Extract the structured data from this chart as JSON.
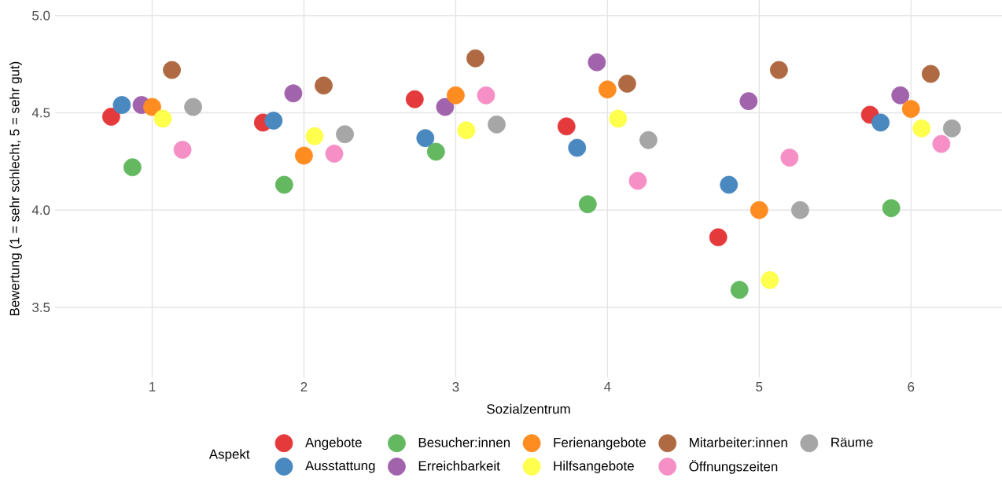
{
  "chart_data": {
    "type": "scatter",
    "xlabel": "Sozialzentrum",
    "ylabel": "Bewertung (1 = sehr schlecht, 5 = sehr gut)",
    "legend_title": "Aspekt",
    "legend": "bottom",
    "grid": true,
    "marker": "circle",
    "xlim": [
      0.36,
      6.6
    ],
    "ylim": [
      3.14,
      5.08
    ],
    "xticks": [
      1,
      2,
      3,
      4,
      5,
      6
    ],
    "yticks": [
      {
        "value": 3.5,
        "label": "3.5"
      },
      {
        "value": 4.0,
        "label": "4.0"
      },
      {
        "value": 4.5,
        "label": "4.5"
      },
      {
        "value": 5.0,
        "label": "5.0"
      }
    ],
    "series": [
      {
        "name": "Angebote",
        "color": "#e53a3c",
        "x": [
          0.73,
          1.73,
          2.73,
          3.73,
          4.73,
          5.73
        ],
        "values": [
          4.48,
          4.45,
          4.57,
          4.43,
          3.86,
          4.49
        ]
      },
      {
        "name": "Ausstattung",
        "color": "#4a88c0",
        "x": [
          0.8,
          1.8,
          2.8,
          3.8,
          4.8,
          5.8
        ],
        "values": [
          4.54,
          4.46,
          4.37,
          4.32,
          4.13,
          4.45
        ]
      },
      {
        "name": "Besucher:innen",
        "color": "#63b860",
        "x": [
          0.87,
          1.87,
          2.87,
          3.87,
          4.87,
          5.87
        ],
        "values": [
          4.22,
          4.13,
          4.3,
          4.03,
          3.59,
          4.01
        ]
      },
      {
        "name": "Erreichbarkeit",
        "color": "#a163ab",
        "x": [
          0.93,
          1.93,
          2.93,
          3.93,
          4.93,
          5.93
        ],
        "values": [
          4.54,
          4.6,
          4.53,
          4.76,
          4.56,
          4.59
        ]
      },
      {
        "name": "Ferienangebote",
        "color": "#ff8c21",
        "x": [
          1.0,
          2.0,
          3.0,
          4.0,
          5.0,
          6.0
        ],
        "values": [
          4.53,
          4.28,
          4.59,
          4.62,
          4.0,
          4.52
        ]
      },
      {
        "name": "Hilfsangebote",
        "color": "#ffff4d",
        "x": [
          1.07,
          2.07,
          3.07,
          4.07,
          5.07,
          6.07
        ],
        "values": [
          4.47,
          4.38,
          4.41,
          4.47,
          3.64,
          4.42
        ]
      },
      {
        "name": "Mitarbeiter:innen",
        "color": "#b06a43",
        "x": [
          1.13,
          2.13,
          3.13,
          4.13,
          5.13,
          6.13
        ],
        "values": [
          4.72,
          4.64,
          4.78,
          4.65,
          4.72,
          4.7
        ]
      },
      {
        "name": "Öffnungszeiten",
        "color": "#f58fc5",
        "x": [
          1.2,
          2.2,
          3.2,
          4.2,
          5.2,
          6.2
        ],
        "values": [
          4.31,
          4.29,
          4.59,
          4.15,
          4.27,
          4.34
        ]
      },
      {
        "name": "Räume",
        "color": "#a6a6a6",
        "x": [
          1.27,
          2.27,
          3.27,
          4.27,
          5.27,
          6.27
        ],
        "values": [
          4.53,
          4.39,
          4.44,
          4.36,
          4.0,
          4.42
        ]
      }
    ]
  }
}
